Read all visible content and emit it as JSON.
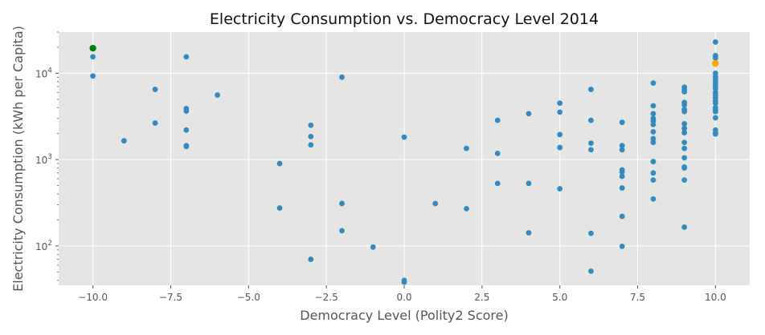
{
  "chart_data": {
    "type": "scatter",
    "title": "Electricity Consumption vs. Democracy Level 2014",
    "xlabel": "Democracy Level (Polity2 Score)",
    "ylabel": "Electricity Consumption (kWh per Capita)",
    "xlim": [
      -11.1,
      11.1
    ],
    "ylim": [
      35,
      30000
    ],
    "y_scale": "log",
    "grid": true,
    "x_ticks": [
      {
        "value": -10,
        "label": "−10.0"
      },
      {
        "value": -7.5,
        "label": "−7.5"
      },
      {
        "value": -5,
        "label": "−5.0"
      },
      {
        "value": -2.5,
        "label": "−2.5"
      },
      {
        "value": 0,
        "label": "0.0"
      },
      {
        "value": 2.5,
        "label": "2.5"
      },
      {
        "value": 5,
        "label": "5.0"
      },
      {
        "value": 7.5,
        "label": "7.5"
      },
      {
        "value": 10,
        "label": "10.0"
      }
    ],
    "y_ticks": [
      {
        "value": 100,
        "base": "10",
        "exp": "2"
      },
      {
        "value": 1000,
        "base": "10",
        "exp": "3"
      },
      {
        "value": 10000,
        "base": "10",
        "exp": "4"
      }
    ],
    "colors": {
      "default": "#348abd",
      "highlight_green": "#008000",
      "highlight_orange": "#ffa500"
    },
    "series": [
      {
        "color": "#348abd",
        "points": [
          [
            -10,
            15500
          ],
          [
            -10,
            9300
          ],
          [
            -9,
            1650
          ],
          [
            -8,
            6500
          ],
          [
            -8,
            2650
          ],
          [
            -7,
            15500
          ],
          [
            -7,
            3900
          ],
          [
            -7,
            3650
          ],
          [
            -7,
            2200
          ],
          [
            -7,
            1450
          ],
          [
            -7,
            1420
          ],
          [
            -6,
            5600
          ],
          [
            -4,
            900
          ],
          [
            -4,
            275
          ],
          [
            -3,
            2500
          ],
          [
            -3,
            1850
          ],
          [
            -3,
            1480
          ],
          [
            -3,
            70
          ],
          [
            -2,
            9000
          ],
          [
            -2,
            310
          ],
          [
            -2,
            150
          ],
          [
            -1,
            97
          ],
          [
            0,
            1820
          ],
          [
            0,
            40
          ],
          [
            0,
            38
          ],
          [
            1,
            310
          ],
          [
            2,
            1350
          ],
          [
            2,
            270
          ],
          [
            3,
            2850
          ],
          [
            3,
            1180
          ],
          [
            3,
            530
          ],
          [
            4,
            3400
          ],
          [
            4,
            530
          ],
          [
            4,
            142
          ],
          [
            5,
            4500
          ],
          [
            5,
            3550
          ],
          [
            5,
            1950
          ],
          [
            5,
            1380
          ],
          [
            5,
            460
          ],
          [
            6,
            6500
          ],
          [
            6,
            2850
          ],
          [
            6,
            1550
          ],
          [
            6,
            1300
          ],
          [
            6,
            140
          ],
          [
            6,
            51
          ],
          [
            7,
            2700
          ],
          [
            7,
            1450
          ],
          [
            7,
            1300
          ],
          [
            7,
            760
          ],
          [
            7,
            720
          ],
          [
            7,
            640
          ],
          [
            7,
            470
          ],
          [
            7,
            220
          ],
          [
            7,
            99
          ],
          [
            8,
            7700
          ],
          [
            8,
            4200
          ],
          [
            8,
            3400
          ],
          [
            8,
            3000
          ],
          [
            8,
            2800
          ],
          [
            8,
            2550
          ],
          [
            8,
            2100
          ],
          [
            8,
            1750
          ],
          [
            8,
            1580
          ],
          [
            8,
            950
          ],
          [
            8,
            700
          ],
          [
            8,
            580
          ],
          [
            8,
            350
          ],
          [
            9,
            6900
          ],
          [
            9,
            6400
          ],
          [
            9,
            6100
          ],
          [
            9,
            4600
          ],
          [
            9,
            4300
          ],
          [
            9,
            3800
          ],
          [
            9,
            3600
          ],
          [
            9,
            2600
          ],
          [
            9,
            2300
          ],
          [
            9,
            2050
          ],
          [
            9,
            1580
          ],
          [
            9,
            1350
          ],
          [
            9,
            1050
          ],
          [
            9,
            820
          ],
          [
            9,
            800
          ],
          [
            9,
            580
          ],
          [
            9,
            165
          ],
          [
            10,
            23000
          ],
          [
            10,
            16000
          ],
          [
            10,
            15000
          ],
          [
            10,
            10000
          ],
          [
            10,
            9100
          ],
          [
            10,
            8600
          ],
          [
            10,
            8000
          ],
          [
            10,
            7500
          ],
          [
            10,
            7000
          ],
          [
            10,
            6600
          ],
          [
            10,
            6000
          ],
          [
            10,
            5600
          ],
          [
            10,
            5200
          ],
          [
            10,
            4800
          ],
          [
            10,
            4500
          ],
          [
            10,
            4000
          ],
          [
            10,
            3800
          ],
          [
            10,
            3600
          ],
          [
            10,
            3050
          ],
          [
            10,
            2200
          ],
          [
            10,
            2050
          ],
          [
            10,
            1980
          ]
        ]
      },
      {
        "color": "#008000",
        "points": [
          [
            -10,
            19500
          ]
        ]
      },
      {
        "color": "#ffa500",
        "points": [
          [
            10,
            13000
          ]
        ]
      }
    ]
  }
}
